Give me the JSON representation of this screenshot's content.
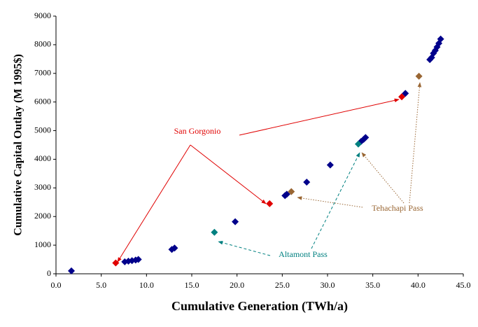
{
  "chart_data": {
    "type": "scatter",
    "x_label": "Cumulative Generation (TWh/a)",
    "y_label": "Cumulative Capital Outlay (M 1995$)",
    "series": [
      {
        "color": "#00008b",
        "x": [
          1.7,
          7.6,
          8.0,
          8.4,
          8.8,
          9.1,
          12.8,
          13.1,
          19.8,
          25.3,
          25.5,
          27.7,
          30.3,
          33.7,
          34.0,
          34.2,
          38.6,
          41.3,
          41.5,
          41.7,
          41.9,
          42.1,
          42.3,
          42.5
        ],
        "values": [
          100,
          420,
          440,
          460,
          480,
          500,
          850,
          900,
          1820,
          2730,
          2780,
          3200,
          3800,
          4620,
          4700,
          4760,
          6300,
          7480,
          7550,
          7700,
          7800,
          7920,
          8050,
          8200
        ]
      },
      {
        "color": "#e00000",
        "x": [
          6.6,
          23.6,
          38.2
        ],
        "values": [
          380,
          2450,
          6180
        ]
      },
      {
        "color": "#996633",
        "x": [
          26.0,
          40.1
        ],
        "values": [
          2870,
          6900
        ]
      },
      {
        "color": "#008080",
        "x": [
          17.5,
          33.4
        ],
        "values": [
          1450,
          4530
        ]
      }
    ],
    "annotations": [
      "San Gorgonio",
      "Tehachapi Pass",
      "Altamont Pass"
    ],
    "xlim": [
      0,
      45
    ],
    "ylim": [
      0,
      9000
    ],
    "xticks": [
      {
        "value": 0,
        "label": "0.0"
      },
      {
        "value": 5,
        "label": "5.0"
      },
      {
        "value": 10,
        "label": "10.0"
      },
      {
        "value": 15,
        "label": "15.0"
      },
      {
        "value": 20,
        "label": "20.0"
      },
      {
        "value": 25,
        "label": "25.0"
      },
      {
        "value": 30,
        "label": "30.0"
      },
      {
        "value": 35,
        "label": "35.0"
      },
      {
        "value": 40,
        "label": "40.0"
      },
      {
        "value": 45,
        "label": "45.0"
      }
    ],
    "yticks": [
      0,
      1000,
      2000,
      3000,
      4000,
      5000,
      6000,
      7000,
      8000,
      9000
    ],
    "grid": false
  }
}
